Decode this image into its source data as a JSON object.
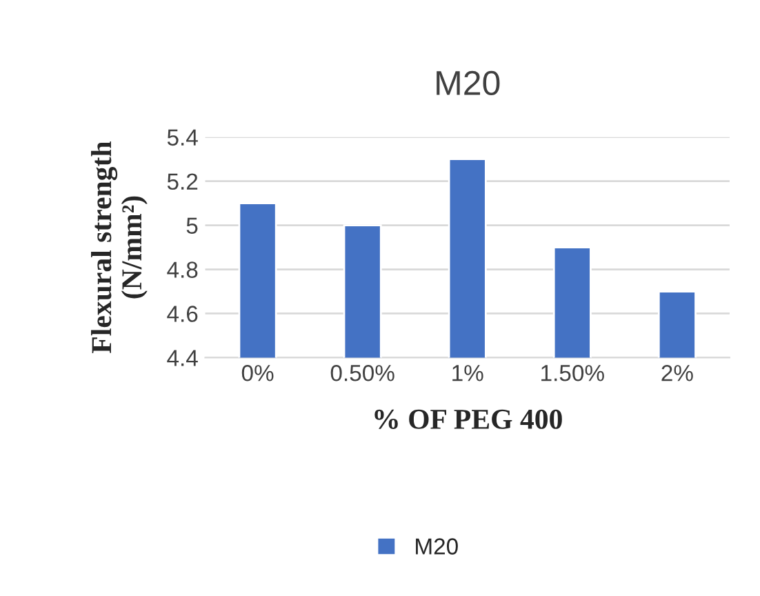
{
  "chart_data": {
    "type": "bar",
    "title": "M20",
    "xlabel": "% OF PEG 400",
    "ylabel": "Flexural strength\n(N/mm²)",
    "categories": [
      "0%",
      "0.50%",
      "1%",
      "1.50%",
      "2%"
    ],
    "series": [
      {
        "name": "M20",
        "color": "#4472c4",
        "values": [
          5.1,
          5.0,
          5.3,
          4.9,
          4.7
        ]
      }
    ],
    "ylim": [
      4.4,
      5.4
    ],
    "yticks": [
      4.4,
      4.6,
      4.8,
      5,
      5.2,
      5.4
    ],
    "grid": "y",
    "legend": "bottom"
  }
}
